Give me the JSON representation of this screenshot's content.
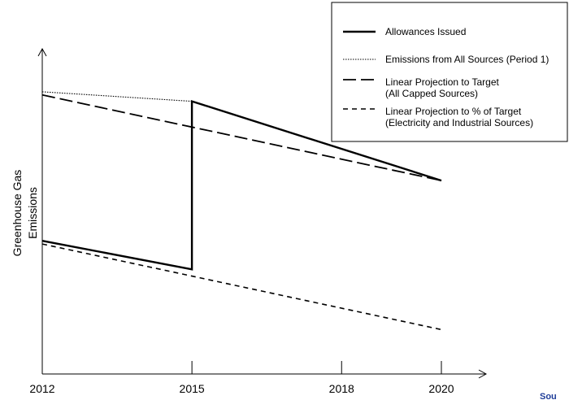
{
  "chart_data": {
    "type": "line",
    "x_ticks": [
      "2012",
      "2015",
      "2018",
      "2020"
    ],
    "xlim": [
      2012,
      2020
    ],
    "ylabel_line1": "Greenhouse Gas",
    "ylabel_line2": "Emissions",
    "ylim": [
      0,
      100
    ],
    "legend_position": "top-right",
    "legend": [
      {
        "style": "solid-thick",
        "lines": [
          "Allowances Issued"
        ]
      },
      {
        "style": "dotted",
        "lines": [
          "Emissions from All Sources (Period 1)"
        ]
      },
      {
        "style": "long-dash",
        "lines": [
          "Linear Projection to Target",
          "(All Capped Sources)"
        ]
      },
      {
        "style": "short-dash",
        "lines": [
          "Linear Projection to % of Target",
          "(Electricity and Industrial Sources)"
        ]
      }
    ],
    "series": [
      {
        "name": "Allowances Issued",
        "style": "solid-thick",
        "points": [
          [
            2012,
            42
          ],
          [
            2015,
            33
          ],
          [
            2015,
            86
          ],
          [
            2020,
            61
          ]
        ]
      },
      {
        "name": "Emissions from All Sources (Period 1)",
        "style": "dotted",
        "points": [
          [
            2012,
            89
          ],
          [
            2015,
            86
          ]
        ]
      },
      {
        "name": "Linear Projection to Target (All Capped Sources)",
        "style": "long-dash",
        "points": [
          [
            2012,
            88
          ],
          [
            2020,
            61
          ]
        ]
      },
      {
        "name": "Linear Projection to % of Target (Electricity and Industrial Sources)",
        "style": "short-dash",
        "points": [
          [
            2012,
            41
          ],
          [
            2020,
            14
          ]
        ]
      }
    ],
    "source_fragment": "Sou"
  }
}
